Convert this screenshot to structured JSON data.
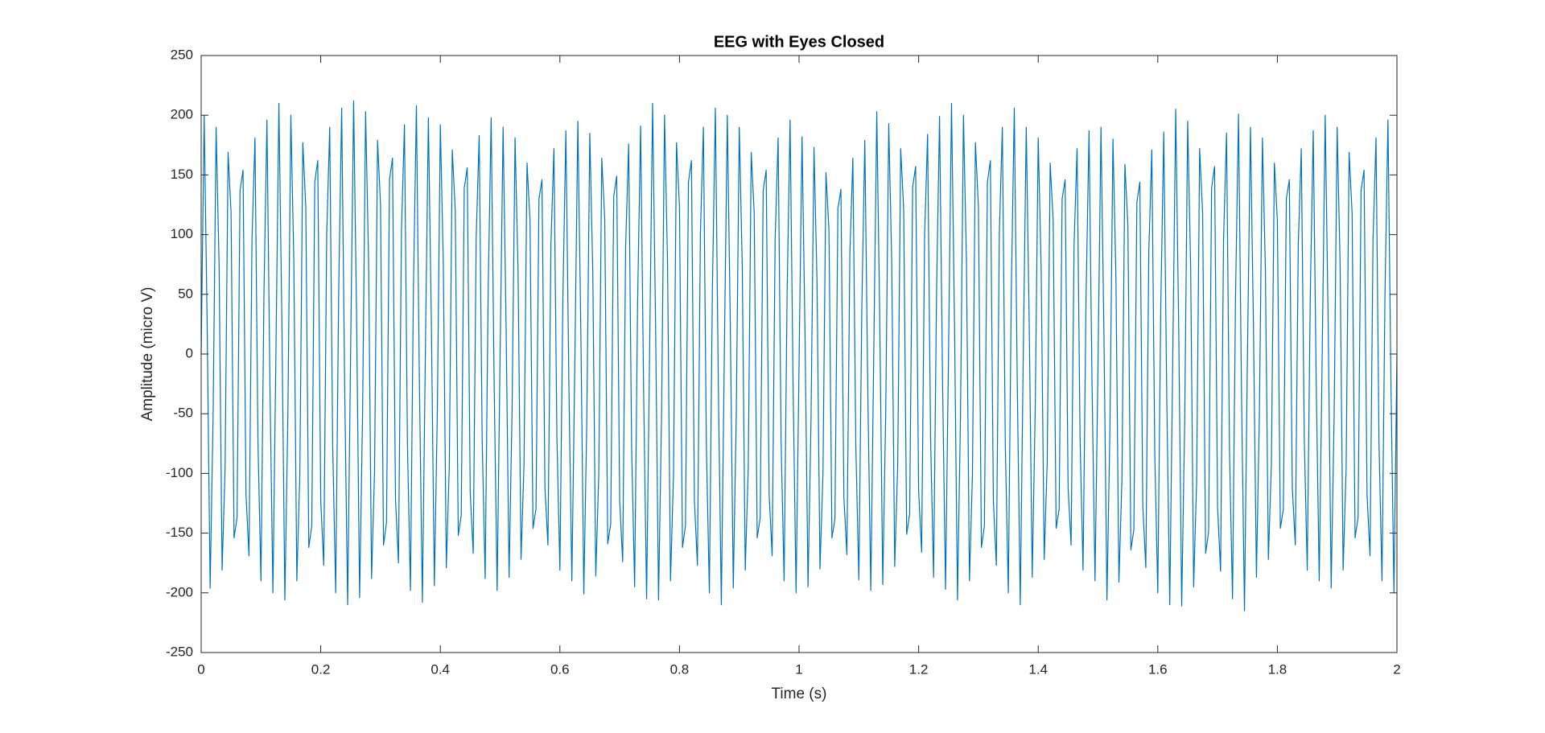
{
  "chart_data": {
    "type": "line",
    "title": "EEG with Eyes Closed",
    "x_label": "Time (s)",
    "y_label": "Amplitude (micro V)",
    "color": "#0072bd",
    "x": [
      0,
      0.005,
      0.01,
      0.015,
      0.02,
      0.025,
      0.03,
      0.035,
      0.04,
      0.045,
      0.05,
      0.055,
      0.06,
      0.065,
      0.07,
      0.075,
      0.08,
      0.085,
      0.09,
      0.095,
      0.1,
      0.105,
      0.11,
      0.115,
      0.12,
      0.125,
      0.13,
      0.135,
      0.14,
      0.145,
      0.15,
      0.155,
      0.16,
      0.165,
      0.17,
      0.175,
      0.18,
      0.185,
      0.19,
      0.195,
      0.2,
      0.205,
      0.21,
      0.215,
      0.22,
      0.225,
      0.23,
      0.235,
      0.24,
      0.245,
      0.25,
      0.255,
      0.26,
      0.265,
      0.27,
      0.275,
      0.28,
      0.285,
      0.29,
      0.295,
      0.3,
      0.305,
      0.31,
      0.315,
      0.32,
      0.325,
      0.33,
      0.335,
      0.34,
      0.345,
      0.35,
      0.355,
      0.36,
      0.365,
      0.37,
      0.375,
      0.38,
      0.385,
      0.39,
      0.395,
      0.4,
      0.405,
      0.41,
      0.415,
      0.42,
      0.425,
      0.43,
      0.435,
      0.44,
      0.445,
      0.45,
      0.455,
      0.46,
      0.465,
      0.47,
      0.475,
      0.48,
      0.485,
      0.49,
      0.495,
      0.5,
      0.505,
      0.51,
      0.515,
      0.52,
      0.525,
      0.53,
      0.535,
      0.54,
      0.545,
      0.55,
      0.555,
      0.56,
      0.565,
      0.57,
      0.575,
      0.58,
      0.585,
      0.59,
      0.595,
      0.6,
      0.605,
      0.61,
      0.615,
      0.62,
      0.625,
      0.63,
      0.635,
      0.64,
      0.645,
      0.65,
      0.655,
      0.66,
      0.665,
      0.67,
      0.675,
      0.68,
      0.685,
      0.69,
      0.695,
      0.7,
      0.705,
      0.71,
      0.715,
      0.72,
      0.725,
      0.73,
      0.735,
      0.74,
      0.745,
      0.75,
      0.755,
      0.76,
      0.765,
      0.77,
      0.775,
      0.78,
      0.785,
      0.79,
      0.795,
      0.8,
      0.805,
      0.81,
      0.815,
      0.82,
      0.825,
      0.83,
      0.835,
      0.84,
      0.845,
      0.85,
      0.855,
      0.86,
      0.865,
      0.87,
      0.875,
      0.88,
      0.885,
      0.89,
      0.895,
      0.9,
      0.905,
      0.91,
      0.915,
      0.92,
      0.925,
      0.93,
      0.935,
      0.94,
      0.945,
      0.95,
      0.955,
      0.96,
      0.965,
      0.97,
      0.975,
      0.98,
      0.985,
      0.99,
      0.995,
      1,
      1.005,
      1.01,
      1.015,
      1.02,
      1.025,
      1.03,
      1.035,
      1.04,
      1.045,
      1.05,
      1.055,
      1.06,
      1.065,
      1.07,
      1.075,
      1.08,
      1.085,
      1.09,
      1.095,
      1.1,
      1.105,
      1.11,
      1.115,
      1.12,
      1.125,
      1.13,
      1.135,
      1.14,
      1.145,
      1.15,
      1.155,
      1.16,
      1.165,
      1.17,
      1.175,
      1.18,
      1.185,
      1.19,
      1.195,
      1.2,
      1.205,
      1.21,
      1.215,
      1.22,
      1.225,
      1.23,
      1.235,
      1.24,
      1.245,
      1.25,
      1.255,
      1.26,
      1.265,
      1.27,
      1.275,
      1.28,
      1.285,
      1.29,
      1.295,
      1.3,
      1.305,
      1.31,
      1.315,
      1.32,
      1.325,
      1.33,
      1.335,
      1.34,
      1.345,
      1.35,
      1.355,
      1.36,
      1.365,
      1.37,
      1.375,
      1.38,
      1.385,
      1.39,
      1.395,
      1.4,
      1.405,
      1.41,
      1.415,
      1.42,
      1.425,
      1.43,
      1.435,
      1.44,
      1.445,
      1.45,
      1.455,
      1.46,
      1.465,
      1.47,
      1.475,
      1.48,
      1.485,
      1.49,
      1.495,
      1.5,
      1.505,
      1.51,
      1.515,
      1.52,
      1.525,
      1.53,
      1.535,
      1.54,
      1.545,
      1.55,
      1.555,
      1.56,
      1.565,
      1.57,
      1.575,
      1.58,
      1.585,
      1.59,
      1.595,
      1.6,
      1.605,
      1.61,
      1.615,
      1.62,
      1.625,
      1.63,
      1.635,
      1.64,
      1.645,
      1.65,
      1.655,
      1.66,
      1.665,
      1.67,
      1.675,
      1.68,
      1.685,
      1.69,
      1.695,
      1.7,
      1.705,
      1.71,
      1.715,
      1.72,
      1.725,
      1.73,
      1.735,
      1.74,
      1.745,
      1.75,
      1.755,
      1.76,
      1.765,
      1.77,
      1.775,
      1.78,
      1.785,
      1.79,
      1.795,
      1.8,
      1.805,
      1.81,
      1.815,
      1.82,
      1.825,
      1.83,
      1.835,
      1.84,
      1.845,
      1.85,
      1.855,
      1.86,
      1.865,
      1.87,
      1.875,
      1.88,
      1.885,
      1.89,
      1.895,
      1.9,
      1.905,
      1.91,
      1.915,
      1.92,
      1.925,
      1.93,
      1.935,
      1.94,
      1.945,
      1.95,
      1.955,
      1.96,
      1.965,
      1.97,
      1.975,
      1.98,
      1.985,
      1.99,
      1.995,
      2
    ],
    "values": [
      0,
      200,
      25,
      -196,
      -50,
      190,
      74,
      -181,
      -96,
      169,
      118,
      -154,
      -137,
      137,
      154,
      -118,
      -169,
      96,
      181,
      -74,
      -190,
      50,
      196,
      -25,
      -200,
      0,
      210,
      26,
      -206,
      -52,
      200,
      77,
      -190,
      -101,
      177,
      123,
      -162,
      -144,
      144,
      162,
      -123,
      -177,
      101,
      190,
      -77,
      -200,
      52,
      206,
      -26,
      -210,
      3,
      212,
      28,
      -204,
      -49,
      203,
      79,
      -188,
      -98,
      179,
      125,
      -160,
      -141,
      146,
      164,
      -121,
      -175,
      103,
      192,
      -75,
      -198,
      54,
      208,
      -24,
      -208,
      2,
      198,
      27,
      -194,
      -48,
      192,
      76,
      -179,
      -94,
      171,
      120,
      -152,
      -135,
      139,
      156,
      -116,
      -167,
      98,
      183,
      -72,
      -188,
      52,
      198,
      -23,
      -198,
      0,
      190,
      24,
      -187,
      -47,
      181,
      70,
      -172,
      -92,
      160,
      112,
      -146,
      -130,
      130,
      146,
      -112,
      -160,
      92,
      172,
      -70,
      -181,
      47,
      187,
      -24,
      -190,
      -5,
      195,
      20,
      -201,
      -55,
      185,
      69,
      -186,
      -101,
      164,
      113,
      -159,
      -142,
      132,
      149,
      -123,
      -174,
      91,
      176,
      -79,
      -195,
      45,
      191,
      -30,
      -205,
      0,
      210,
      26,
      -206,
      -52,
      200,
      77,
      -190,
      -101,
      177,
      123,
      -162,
      -144,
      144,
      162,
      -123,
      -177,
      101,
      190,
      -77,
      -200,
      52,
      206,
      -26,
      -210,
      0,
      200,
      25,
      -196,
      -50,
      190,
      74,
      -181,
      -96,
      169,
      118,
      -154,
      -137,
      137,
      154,
      -118,
      -169,
      96,
      181,
      -74,
      -190,
      50,
      196,
      -25,
      -200,
      -8,
      182,
      16,
      -195,
      -55,
      173,
      62,
      -180,
      -100,
      152,
      104,
      -154,
      -138,
      122,
      138,
      -120,
      -168,
      84,
      164,
      -78,
      -189,
      39,
      179,
      -32,
      -198,
      3,
      203,
      28,
      -193,
      -47,
      193,
      77,
      -178,
      -93,
      172,
      121,
      -151,
      -134,
      140,
      157,
      -115,
      -166,
      99,
      184,
      -71,
      -187,
      53,
      199,
      -22,
      -197,
      0,
      210,
      26,
      -206,
      -52,
      200,
      77,
      -190,
      -101,
      177,
      123,
      -162,
      -144,
      144,
      162,
      -123,
      -177,
      101,
      190,
      -77,
      -200,
      52,
      206,
      -26,
      -210,
      0,
      190,
      24,
      -187,
      -47,
      181,
      70,
      -172,
      -92,
      160,
      112,
      -146,
      -130,
      130,
      146,
      -112,
      -160,
      92,
      172,
      -70,
      -181,
      47,
      187,
      -24,
      -190,
      -10,
      190,
      15,
      -206,
      -60,
      180,
      64,
      -191,
      -106,
      159,
      108,
      -164,
      -147,
      127,
      144,
      -128,
      -179,
      86,
      171,
      -84,
      -200,
      40,
      186,
      -35,
      -210,
      -5,
      205,
      21,
      -211,
      -57,
      195,
      72,
      -195,
      -106,
      172,
      118,
      -167,
      -149,
      139,
      157,
      -128,
      -182,
      96,
      185,
      -82,
      -205,
      47,
      201,
      -31,
      -215,
      0,
      190,
      24,
      -187,
      -47,
      181,
      70,
      -172,
      -92,
      160,
      112,
      -146,
      -130,
      130,
      146,
      -112,
      -160,
      92,
      172,
      -70,
      -181,
      47,
      187,
      -24,
      -190,
      0,
      200,
      25,
      -196,
      -50,
      190,
      74,
      -181,
      -96,
      169,
      118,
      -154,
      -137,
      137,
      154,
      -118,
      -169,
      96,
      181,
      -74,
      -190,
      50,
      196,
      -25,
      -200,
      0
    ],
    "xlim": [
      0,
      2
    ],
    "xticks": [
      0,
      0.2,
      0.4,
      0.6,
      0.8,
      1,
      1.2,
      1.4,
      1.6,
      1.8,
      2
    ],
    "ylim": [
      -250,
      250
    ],
    "yticks": [
      -250,
      -200,
      -150,
      -100,
      -50,
      0,
      50,
      100,
      150,
      200,
      250
    ]
  }
}
